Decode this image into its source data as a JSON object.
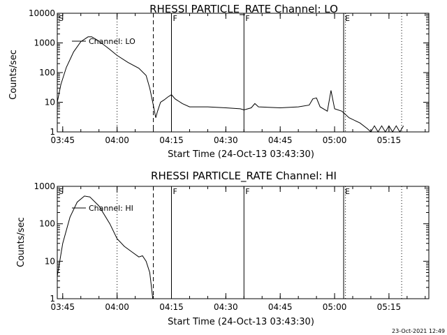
{
  "footer": {
    "timestamp": "23-Oct-2021 12:49"
  },
  "colors": {
    "background": "#ffffff",
    "ink": "#000000"
  },
  "chart_data": [
    {
      "type": "line",
      "title": "RHESSI PARTICLE_RATE Channel: LO",
      "xlabel": "Start Time (24-Oct-13 03:43:30)",
      "ylabel": "Counts/sec",
      "yscale": "log",
      "xlim": [
        "03:43:30",
        "05:26:00"
      ],
      "ylim": [
        1,
        10000
      ],
      "xticks": [
        "03:45",
        "04:00",
        "04:15",
        "04:30",
        "04:45",
        "05:00",
        "05:15"
      ],
      "yticks": [
        "1",
        "10",
        "100",
        "1000",
        "10000"
      ],
      "legend": {
        "label": "Channel: LO",
        "placement": "top-left"
      },
      "markers": [
        {
          "label": "S",
          "time": "03:43:30",
          "style": "solid"
        },
        {
          "label": "",
          "time": "04:00:00",
          "style": "dotted"
        },
        {
          "label": "",
          "time": "04:10:00",
          "style": "dashed"
        },
        {
          "label": "F",
          "time": "04:15:00",
          "style": "solid"
        },
        {
          "label": "F",
          "time": "04:35:00",
          "style": "solid"
        },
        {
          "label": "E",
          "time": "05:02:30",
          "style": "solid"
        },
        {
          "label": "",
          "time": "05:03:00",
          "style": "dotted"
        },
        {
          "label": "",
          "time": "05:18:30",
          "style": "dotted"
        }
      ],
      "series": [
        {
          "name": "Channel: LO",
          "points": [
            [
              "03:43:30",
              10
            ],
            [
              "03:44:30",
              40
            ],
            [
              "03:46:00",
              150
            ],
            [
              "03:48:00",
              500
            ],
            [
              "03:50:00",
              1100
            ],
            [
              "03:52:00",
              1600
            ],
            [
              "03:53:00",
              1600
            ],
            [
              "03:55:00",
              1150
            ],
            [
              "03:58:00",
              600
            ],
            [
              "04:00:00",
              380
            ],
            [
              "04:03:00",
              220
            ],
            [
              "04:06:00",
              140
            ],
            [
              "04:08:00",
              80
            ],
            [
              "04:09:00",
              30
            ],
            [
              "04:10:00",
              8
            ],
            [
              "04:10:40",
              3
            ],
            [
              "04:11:10",
              5
            ],
            [
              "04:12:00",
              10
            ],
            [
              "04:13:00",
              12
            ],
            [
              "04:14:00",
              15
            ],
            [
              "04:15:00",
              18
            ],
            [
              "04:16:00",
              13
            ],
            [
              "04:18:00",
              9
            ],
            [
              "04:20:00",
              7
            ],
            [
              "04:25:00",
              7
            ],
            [
              "04:30:00",
              6.5
            ],
            [
              "04:34:00",
              6
            ],
            [
              "04:35:00",
              5.5
            ],
            [
              "04:37:00",
              6.5
            ],
            [
              "04:38:00",
              9
            ],
            [
              "04:39:00",
              7
            ],
            [
              "04:45:00",
              6.5
            ],
            [
              "04:50:00",
              7
            ],
            [
              "04:53:00",
              8
            ],
            [
              "04:54:00",
              13
            ],
            [
              "04:55:00",
              14
            ],
            [
              "04:56:00",
              7
            ],
            [
              "04:58:00",
              5
            ],
            [
              "04:59:00",
              25
            ],
            [
              "05:00:00",
              6
            ],
            [
              "05:02:00",
              5
            ],
            [
              "05:04:00",
              3
            ],
            [
              "05:07:00",
              2
            ],
            [
              "05:09:00",
              1.3
            ],
            [
              "05:10:00",
              1
            ],
            [
              "05:11:00",
              1.6
            ],
            [
              "05:12:00",
              1
            ],
            [
              "05:13:00",
              1.6
            ],
            [
              "05:14:00",
              1
            ],
            [
              "05:15:00",
              1.6
            ],
            [
              "05:16:00",
              1
            ],
            [
              "05:17:00",
              1.6
            ],
            [
              "05:18:00",
              1
            ],
            [
              "05:19:00",
              1.6
            ]
          ]
        }
      ]
    },
    {
      "type": "line",
      "title": "RHESSI PARTICLE_RATE Channel: HI",
      "xlabel": "Start Time (24-Oct-13 03:43:30)",
      "ylabel": "Counts/sec",
      "yscale": "log",
      "xlim": [
        "03:43:30",
        "05:26:00"
      ],
      "ylim": [
        1,
        1000
      ],
      "xticks": [
        "03:45",
        "04:00",
        "04:15",
        "04:30",
        "04:45",
        "05:00",
        "05:15"
      ],
      "yticks": [
        "1",
        "10",
        "100",
        "1000"
      ],
      "legend": {
        "label": "Channel: HI",
        "placement": "top-left"
      },
      "markers": [
        {
          "label": "S",
          "time": "03:43:30",
          "style": "solid"
        },
        {
          "label": "",
          "time": "04:00:00",
          "style": "dotted"
        },
        {
          "label": "",
          "time": "04:10:00",
          "style": "dashed"
        },
        {
          "label": "F",
          "time": "04:15:00",
          "style": "solid"
        },
        {
          "label": "F",
          "time": "04:35:00",
          "style": "solid"
        },
        {
          "label": "E",
          "time": "05:02:30",
          "style": "solid"
        },
        {
          "label": "",
          "time": "05:03:00",
          "style": "dotted"
        },
        {
          "label": "",
          "time": "05:18:30",
          "style": "dotted"
        }
      ],
      "series": [
        {
          "name": "Channel: HI",
          "points": [
            [
              "03:43:30",
              4
            ],
            [
              "03:45:00",
              30
            ],
            [
              "03:47:00",
              150
            ],
            [
              "03:49:00",
              380
            ],
            [
              "03:51:00",
              550
            ],
            [
              "03:52:30",
              520
            ],
            [
              "03:55:00",
              300
            ],
            [
              "03:58:00",
              100
            ],
            [
              "04:00:00",
              40
            ],
            [
              "04:02:00",
              25
            ],
            [
              "04:04:00",
              18
            ],
            [
              "04:06:00",
              13
            ],
            [
              "04:07:00",
              14
            ],
            [
              "04:08:00",
              10
            ],
            [
              "04:09:00",
              5
            ],
            [
              "04:09:30",
              2
            ],
            [
              "04:09:50",
              1
            ]
          ]
        }
      ]
    }
  ]
}
